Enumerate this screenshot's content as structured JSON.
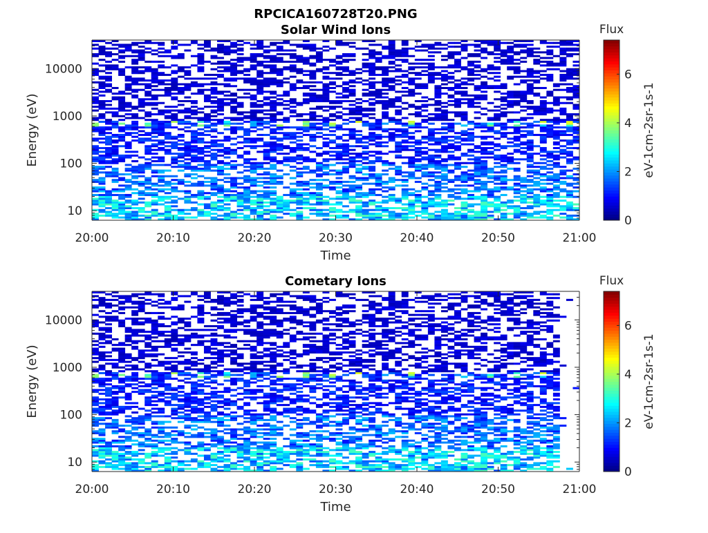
{
  "chart_data": [
    {
      "type": "heatmap",
      "suptitle": "RPCICA160728T20.PNG",
      "title": "Solar Wind Ions",
      "xlabel": "Time",
      "ylabel": "Energy (eV)",
      "xticks": [
        "20:00",
        "20:10",
        "20:20",
        "20:30",
        "20:40",
        "20:50",
        "21:00"
      ],
      "xlim_minutes": [
        0,
        60
      ],
      "yscale": "log",
      "ylim": [
        6.3,
        40000
      ],
      "yticks": [
        "10",
        "100",
        "1000",
        "10000"
      ],
      "colorbar": {
        "title": "Flux",
        "label": "eV-1cm-2sr-1s-1",
        "ticks": [
          "0",
          "2",
          "4",
          "6"
        ],
        "range": [
          0,
          7.4
        ],
        "colormap": "jet"
      },
      "data_end_minute": 60,
      "energy_profile": [
        {
          "energy_range_eV": [
            6.3,
            20
          ],
          "typical_flux": 2.4,
          "fill_fraction": 0.6
        },
        {
          "energy_range_eV": [
            20,
            100
          ],
          "typical_flux": 1.7,
          "fill_fraction": 0.55
        },
        {
          "energy_range_eV": [
            100,
            600
          ],
          "typical_flux": 1.1,
          "fill_fraction": 0.55
        },
        {
          "energy_range_eV": [
            600,
            800
          ],
          "typical_flux": 3.3,
          "fill_fraction": 0.6,
          "note": "periodic peaks"
        },
        {
          "energy_range_eV": [
            800,
            40000
          ],
          "typical_flux": 0.6,
          "fill_fraction": 0.5
        }
      ]
    },
    {
      "type": "heatmap",
      "title": "Cometary Ions",
      "xlabel": "Time",
      "ylabel": "Energy (eV)",
      "xticks": [
        "20:00",
        "20:10",
        "20:20",
        "20:30",
        "20:40",
        "20:50",
        "21:00"
      ],
      "xlim_minutes": [
        0,
        60
      ],
      "yscale": "log",
      "ylim": [
        6.3,
        40000
      ],
      "yticks": [
        "10",
        "100",
        "1000",
        "10000"
      ],
      "colorbar": {
        "title": "Flux",
        "label": "eV-1cm-2sr-1s-1",
        "ticks": [
          "0",
          "2",
          "4",
          "6"
        ],
        "range": [
          0,
          7.4
        ],
        "colormap": "jet"
      },
      "data_end_minute": 57,
      "energy_profile": [
        {
          "energy_range_eV": [
            6.3,
            20
          ],
          "typical_flux": 2.4,
          "fill_fraction": 0.6
        },
        {
          "energy_range_eV": [
            20,
            100
          ],
          "typical_flux": 1.7,
          "fill_fraction": 0.55
        },
        {
          "energy_range_eV": [
            100,
            600
          ],
          "typical_flux": 1.1,
          "fill_fraction": 0.55
        },
        {
          "energy_range_eV": [
            600,
            800
          ],
          "typical_flux": 3.3,
          "fill_fraction": 0.6,
          "note": "periodic peaks"
        },
        {
          "energy_range_eV": [
            800,
            40000
          ],
          "typical_flux": 0.6,
          "fill_fraction": 0.5
        }
      ]
    }
  ]
}
